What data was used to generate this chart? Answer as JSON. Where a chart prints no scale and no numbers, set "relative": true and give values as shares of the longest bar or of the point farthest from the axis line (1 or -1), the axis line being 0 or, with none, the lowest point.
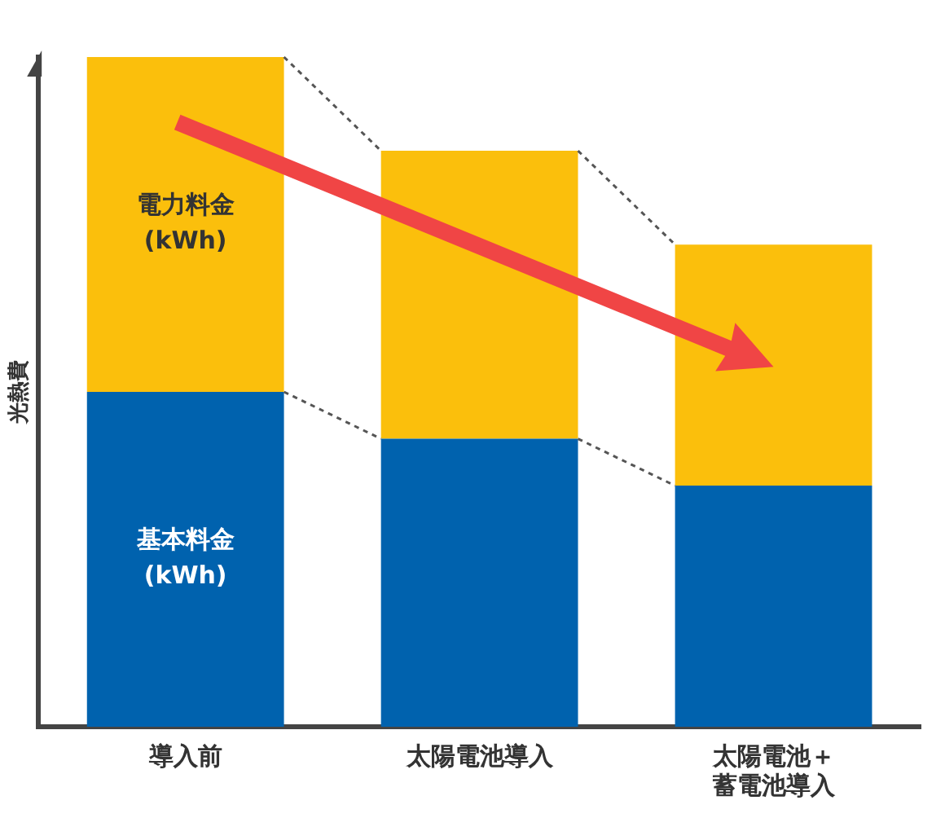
{
  "chart_data": {
    "type": "bar",
    "stacked": true,
    "relative": true,
    "ylabel": "光熱費",
    "legend": false,
    "categories": [
      "導入前",
      "太陽電池導入",
      "太陽電池＋蓄電池導入"
    ],
    "series": [
      {
        "name": "基本料金\n(kWh)",
        "color": "#0062ae",
        "values": [
          0.5,
          0.43,
          0.36
        ]
      },
      {
        "name": "電力料金\n(kWh)",
        "color": "#fbbf0c",
        "values": [
          0.5,
          0.43,
          0.36
        ]
      }
    ]
  }
}
